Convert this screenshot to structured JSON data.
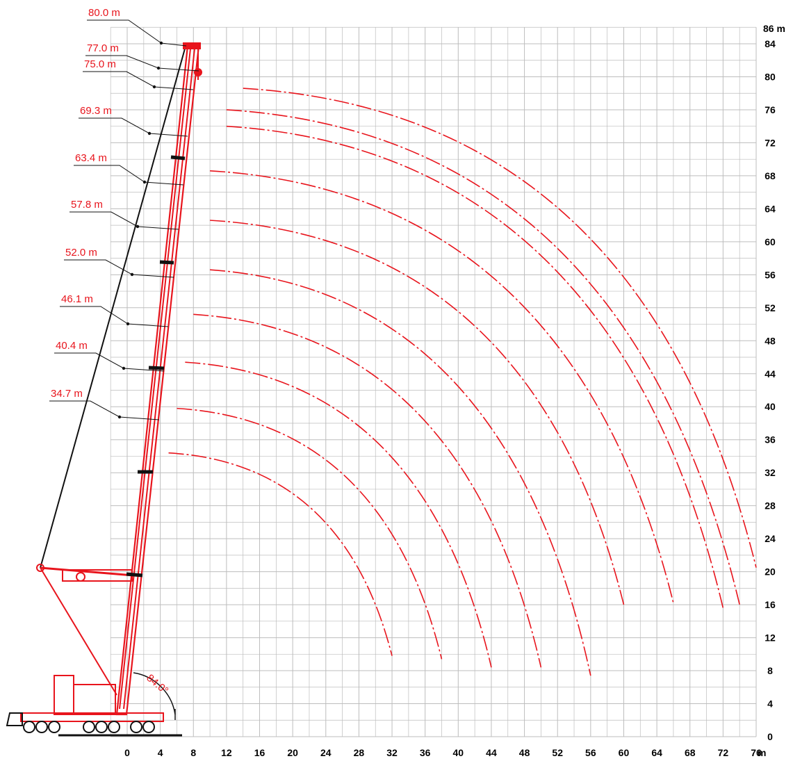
{
  "diagram": {
    "type": "crane working range diagram",
    "x_unit": "m",
    "y_unit": "m",
    "x_ticks": [
      0,
      4,
      8,
      12,
      16,
      20,
      24,
      28,
      32,
      36,
      40,
      44,
      48,
      52,
      56,
      60,
      64,
      68,
      72,
      76
    ],
    "y_ticks": [
      0,
      4,
      8,
      12,
      16,
      20,
      24,
      28,
      32,
      36,
      40,
      44,
      48,
      52,
      56,
      60,
      64,
      68,
      72,
      76,
      80,
      84
    ],
    "y_top_label": "86 m",
    "x_end_label": "m",
    "angle_label": "84.0°",
    "accent_color": "#e8141c",
    "grid_color": "#bdbdbd"
  },
  "boom_lengths": [
    {
      "label": "80.0 m",
      "length": 80.0,
      "arc_start": [
        14,
        78.6
      ],
      "arc_end": [
        76,
        20.5
      ]
    },
    {
      "label": "77.0 m",
      "length": 77.0,
      "arc_start": [
        12,
        76.0
      ],
      "arc_end": [
        74,
        16.0
      ]
    },
    {
      "label": "75.0 m",
      "length": 75.0,
      "arc_start": [
        12,
        74.0
      ],
      "arc_end": [
        72,
        15.6
      ]
    },
    {
      "label": "69.3 m",
      "length": 69.3,
      "arc_start": [
        10,
        68.6
      ],
      "arc_end": [
        66,
        16.2
      ]
    },
    {
      "label": "63.4 m",
      "length": 63.4,
      "arc_start": [
        10,
        62.6
      ],
      "arc_end": [
        60,
        16.0
      ]
    },
    {
      "label": "57.8 m",
      "length": 57.8,
      "arc_start": [
        10,
        56.6
      ],
      "arc_end": [
        56,
        7.4
      ]
    },
    {
      "label": "52.0 m",
      "length": 52.0,
      "arc_start": [
        8,
        51.2
      ],
      "arc_end": [
        50,
        8.4
      ]
    },
    {
      "label": "46.1 m",
      "length": 46.1,
      "arc_start": [
        7,
        45.4
      ],
      "arc_end": [
        44,
        8.4
      ]
    },
    {
      "label": "40.4 m",
      "length": 40.4,
      "arc_start": [
        6,
        39.8
      ],
      "arc_end": [
        38,
        9.4
      ]
    },
    {
      "label": "34.7 m",
      "length": 34.7,
      "arc_start": [
        5,
        34.4
      ],
      "arc_end": [
        32,
        9.8
      ]
    }
  ]
}
